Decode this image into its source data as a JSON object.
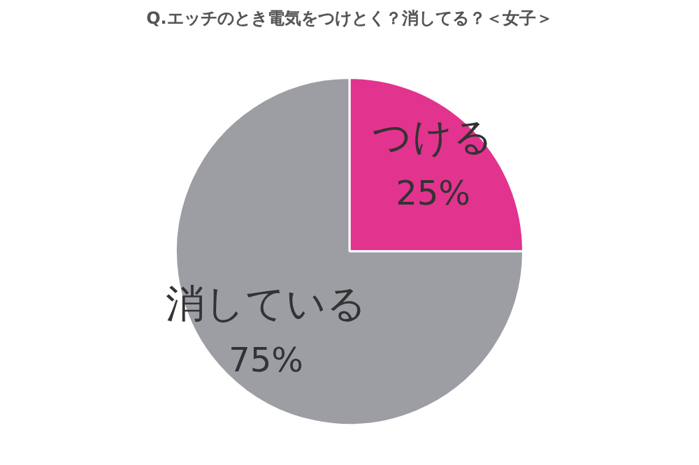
{
  "chart_data": {
    "type": "pie",
    "title": "Q.エッチのとき電気をつけとく？消してる？＜女子＞",
    "categories": [
      "つける",
      "消している"
    ],
    "values": [
      25,
      75
    ],
    "value_labels": [
      "25%",
      "75%"
    ],
    "colors": [
      "#e2338f",
      "#9c9ea4"
    ],
    "legend": false
  }
}
